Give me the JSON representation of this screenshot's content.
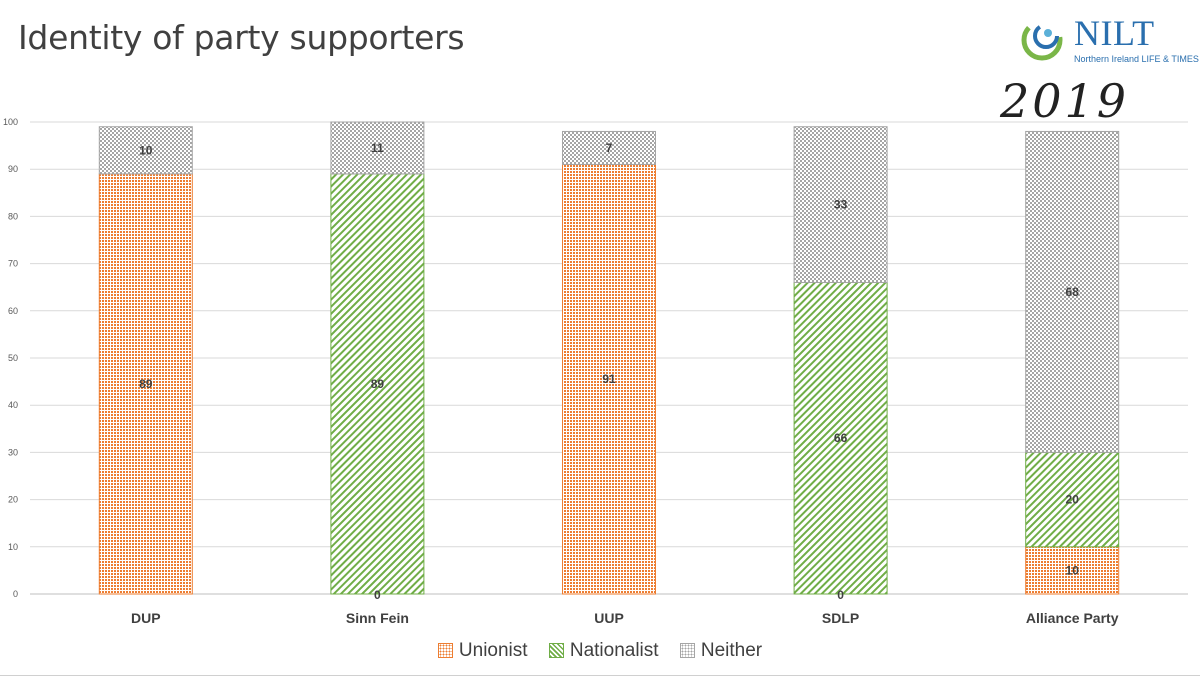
{
  "slide": {
    "title": "Identity of party supporters",
    "logo_text": "NILT",
    "logo_subtitle": "Northern Ireland LIFE & TIMES",
    "annotation": "2019"
  },
  "colors": {
    "unionist": "#ed7d31",
    "nationalist": "#70ad47",
    "neither": "#a5a5a5"
  },
  "chart_data": {
    "type": "bar",
    "stacked": true,
    "title": "",
    "xlabel": "",
    "ylabel": "",
    "ylim": [
      0,
      100
    ],
    "yticks": [
      0,
      10,
      20,
      30,
      40,
      50,
      60,
      70,
      80,
      90,
      100
    ],
    "grid": true,
    "legend_position": "bottom",
    "categories": [
      "DUP",
      "Sinn Fein",
      "UUP",
      "SDLP",
      "Alliance Party"
    ],
    "series": [
      {
        "name": "Unionist",
        "key": "unionist",
        "values": [
          89,
          0,
          91,
          0,
          10
        ],
        "labels": [
          "89",
          "",
          "91",
          "",
          "10"
        ]
      },
      {
        "name": "Nationalist",
        "key": "nationalist",
        "values": [
          0,
          89,
          0,
          66,
          20
        ],
        "labels": [
          "",
          "89",
          "",
          "66",
          "20"
        ]
      },
      {
        "name": "Neither",
        "key": "neither",
        "values": [
          10,
          11,
          7,
          33,
          68
        ],
        "labels": [
          "10",
          "11",
          "7",
          "33",
          "68"
        ]
      }
    ],
    "extra_labels": [
      {
        "category": "Sinn Fein",
        "text": "0"
      },
      {
        "category": "SDLP",
        "text": "0"
      }
    ]
  }
}
